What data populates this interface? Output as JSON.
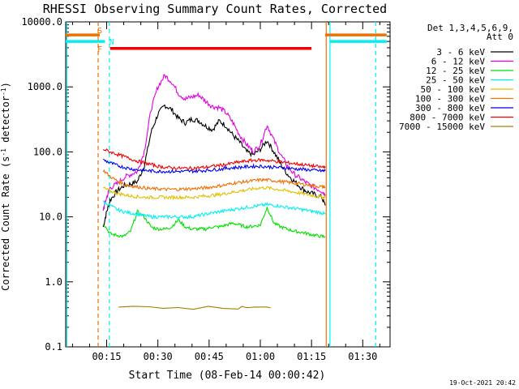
{
  "chart_data": {
    "type": "line",
    "title": "RHESSI Observing Summary Count Rates, Corrected",
    "xlabel": "Start Time (08-Feb-14 00:00:42)",
    "ylabel_parts": [
      "Corrected Count Rate (s",
      "-1",
      " detector",
      "-1",
      ")"
    ],
    "yscale": "log",
    "ylim": [
      0.1,
      10000
    ],
    "xlim_minutes": [
      3,
      98
    ],
    "y_ticks": [
      {
        "v": 0.1,
        "label": "0.1"
      },
      {
        "v": 1,
        "label": "1.0"
      },
      {
        "v": 10,
        "label": "10.0"
      },
      {
        "v": 100,
        "label": "100.0"
      },
      {
        "v": 1000,
        "label": "1000.0"
      },
      {
        "v": 10000,
        "label": "10000.0"
      }
    ],
    "x_ticks": [
      {
        "m": 15,
        "label": "00:15"
      },
      {
        "m": 30,
        "label": "00:30"
      },
      {
        "m": 45,
        "label": "00:45"
      },
      {
        "m": 60,
        "label": "01:00"
      },
      {
        "m": 75,
        "label": "01:15"
      },
      {
        "m": 90,
        "label": "01:30"
      }
    ],
    "legend_header": [
      "Det 1,3,4,5,6,9,",
      "Att 0"
    ],
    "legend_position": "right",
    "series": [
      {
        "name": "3 - 6 keV",
        "color": "#000000",
        "x": [
          14,
          15,
          16,
          18,
          20,
          22,
          24,
          26,
          28,
          30,
          32,
          34,
          36,
          38,
          40,
          42,
          44,
          46,
          48,
          50,
          52,
          54,
          56,
          58,
          60,
          62,
          64,
          66,
          68,
          70,
          72,
          74,
          76,
          78,
          79
        ],
        "y": [
          7,
          12,
          18,
          25,
          30,
          32,
          35,
          60,
          200,
          380,
          520,
          450,
          330,
          280,
          320,
          300,
          250,
          220,
          300,
          250,
          180,
          140,
          100,
          90,
          110,
          150,
          100,
          65,
          45,
          35,
          28,
          24,
          22,
          20,
          15
        ]
      },
      {
        "name": "6 - 12 keV",
        "color": "#e000e0",
        "x": [
          14,
          15,
          16,
          18,
          20,
          22,
          24,
          26,
          28,
          30,
          32,
          34,
          36,
          38,
          40,
          42,
          44,
          46,
          48,
          50,
          52,
          54,
          56,
          58,
          60,
          62,
          64,
          66,
          68,
          70,
          72,
          74,
          76,
          78,
          79
        ],
        "y": [
          13,
          20,
          28,
          32,
          40,
          45,
          50,
          100,
          450,
          1000,
          1500,
          1200,
          800,
          650,
          700,
          750,
          600,
          500,
          480,
          400,
          280,
          180,
          130,
          100,
          130,
          260,
          150,
          90,
          60,
          45,
          38,
          32,
          28,
          25,
          22
        ]
      },
      {
        "name": "12 - 25 keV",
        "color": "#00e000",
        "x": [
          14,
          16,
          18,
          20,
          22,
          24,
          26,
          28,
          30,
          32,
          34,
          36,
          38,
          40,
          42,
          44,
          46,
          48,
          50,
          52,
          54,
          56,
          58,
          60,
          62,
          64,
          66,
          68,
          70,
          72,
          74,
          76,
          78,
          79
        ],
        "y": [
          8,
          5.5,
          5.2,
          5.0,
          6,
          12,
          10,
          7,
          6.5,
          6.5,
          7,
          9,
          7,
          6.5,
          6.5,
          6.5,
          7,
          7,
          7.5,
          8,
          7.5,
          7,
          7.2,
          7.5,
          14,
          8,
          7,
          6.5,
          6,
          5.8,
          5.5,
          5.2,
          5,
          5
        ]
      },
      {
        "name": "25 - 50 keV",
        "color": "#00f0f0",
        "x": [
          14,
          16,
          18,
          20,
          22,
          24,
          26,
          28,
          30,
          32,
          34,
          36,
          38,
          40,
          42,
          44,
          46,
          48,
          50,
          52,
          54,
          56,
          58,
          60,
          62,
          64,
          66,
          68,
          70,
          72,
          74,
          76,
          78,
          79
        ],
        "y": [
          17,
          15,
          13,
          12,
          11.5,
          11,
          10.5,
          10,
          10,
          10,
          10,
          10,
          10,
          10,
          10.5,
          11,
          11.5,
          12,
          12.5,
          13,
          13.5,
          14,
          14.5,
          15,
          15.5,
          15,
          14.5,
          14,
          13.5,
          13,
          12.5,
          12,
          11.5,
          11
        ]
      },
      {
        "name": "50 - 100 keV",
        "color": "#e0c000",
        "x": [
          14,
          16,
          18,
          20,
          22,
          24,
          26,
          28,
          30,
          32,
          34,
          36,
          38,
          40,
          42,
          44,
          46,
          48,
          50,
          52,
          54,
          56,
          58,
          60,
          62,
          64,
          66,
          68,
          70,
          72,
          74,
          76,
          78,
          79
        ],
        "y": [
          28,
          25,
          23,
          22,
          21,
          20.5,
          20,
          20,
          20,
          20,
          20,
          20,
          20,
          20,
          20.5,
          21,
          21.5,
          22,
          23,
          24,
          25,
          26,
          27,
          28,
          28,
          27,
          26,
          25,
          24,
          23,
          22,
          21,
          20,
          20
        ]
      },
      {
        "name": "100 - 300 keV",
        "color": "#f07000",
        "x": [
          14,
          16,
          18,
          20,
          22,
          24,
          26,
          28,
          30,
          32,
          34,
          36,
          38,
          40,
          42,
          44,
          46,
          48,
          50,
          52,
          54,
          56,
          58,
          60,
          62,
          64,
          66,
          68,
          70,
          72,
          74,
          76,
          78,
          79
        ],
        "y": [
          52,
          42,
          36,
          32,
          30,
          29,
          28,
          27,
          27,
          26.5,
          26.5,
          26.5,
          27,
          27,
          27.5,
          28,
          29,
          30,
          31,
          33,
          34,
          35,
          36,
          37,
          37,
          36,
          35,
          34,
          33,
          32,
          31,
          30,
          29,
          29
        ]
      },
      {
        "name": "300 - 800 keV",
        "color": "#0000f0",
        "x": [
          14,
          16,
          18,
          20,
          22,
          24,
          26,
          28,
          30,
          32,
          34,
          36,
          38,
          40,
          42,
          44,
          46,
          48,
          50,
          52,
          54,
          56,
          58,
          60,
          62,
          64,
          66,
          68,
          70,
          72,
          74,
          76,
          78,
          79
        ],
        "y": [
          75,
          68,
          62,
          58,
          55,
          53,
          52,
          51,
          50,
          50,
          50,
          50,
          50,
          50.5,
          51,
          52,
          53,
          54,
          56,
          57,
          58,
          59,
          60,
          60,
          59,
          58,
          57,
          56,
          55,
          54,
          53,
          52,
          51,
          51
        ]
      },
      {
        "name": "800 - 7000 keV",
        "color": "#f00000",
        "x": [
          14,
          16,
          18,
          20,
          22,
          24,
          26,
          28,
          30,
          32,
          34,
          36,
          38,
          40,
          42,
          44,
          46,
          48,
          50,
          52,
          54,
          56,
          58,
          60,
          62,
          64,
          66,
          68,
          70,
          72,
          74,
          76,
          78,
          79
        ],
        "y": [
          110,
          100,
          92,
          85,
          78,
          72,
          68,
          64,
          60,
          58,
          57,
          56,
          56,
          56,
          57,
          58,
          60,
          62,
          64,
          67,
          70,
          72,
          74,
          75,
          74,
          72,
          70,
          68,
          66,
          64,
          62,
          60,
          58,
          60
        ]
      },
      {
        "name": "7000 - 15000 keV",
        "color": "#a08000",
        "x": [
          18.5,
          53.5,
          63
        ],
        "y": [
          0.4,
          0.4,
          0.4
        ]
      }
    ],
    "flags": [
      {
        "label": "S",
        "color": "#f07000",
        "segments": [
          [
            3,
            13
          ],
          [
            79,
            97
          ]
        ],
        "y": 6300
      },
      {
        "label": "N",
        "color": "#00f0f0",
        "segments": [
          [
            3,
            14.5
          ],
          [
            80.5,
            97
          ]
        ],
        "y": 5000
      },
      {
        "label": "F",
        "color": "#f00000",
        "segments": [
          [
            16,
            75
          ]
        ],
        "y": 3900
      }
    ],
    "flag_labels": [
      {
        "text": "S",
        "m": 13,
        "y": 7500,
        "color": "#f07000"
      },
      {
        "text": "N",
        "m": 16.5,
        "y": 5000,
        "color": "#00f0f0"
      },
      {
        "text": "F",
        "m": 13,
        "y": 3900,
        "color": "#f07000"
      }
    ],
    "vlines": [
      {
        "m": 3.3,
        "color": "#00f0f0",
        "dash": false
      },
      {
        "m": 12.5,
        "color": "#f07000",
        "dash": true
      },
      {
        "m": 15.8,
        "color": "#00f0f0",
        "dash": true
      },
      {
        "m": 79.3,
        "color": "#f07000",
        "dash": false
      },
      {
        "m": 80.4,
        "color": "#00f0f0",
        "dash": false
      },
      {
        "m": 93.8,
        "color": "#00f0f0",
        "dash": true
      }
    ]
  },
  "footer": {
    "timestamp": "19-Oct-2021 20:42"
  }
}
